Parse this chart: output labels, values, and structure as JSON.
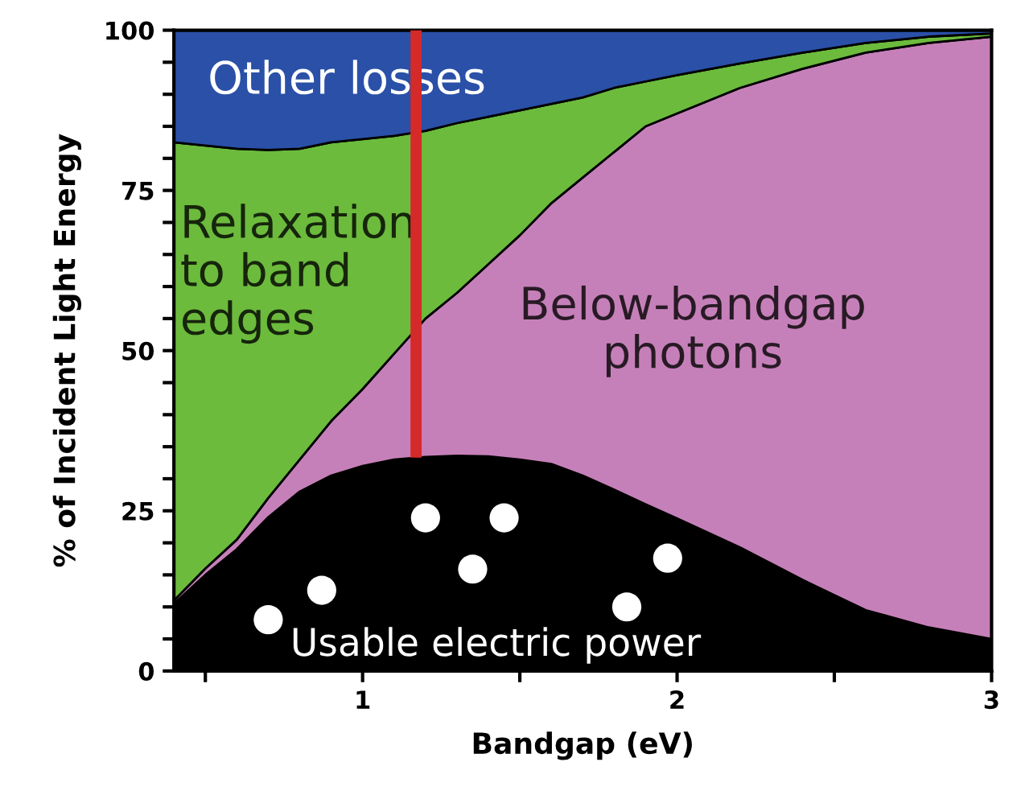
{
  "chart_data": {
    "type": "area",
    "stacked": true,
    "xlabel": "Bandgap (eV)",
    "ylabel": "% of Incident Light Energy",
    "x": [
      0.4,
      0.5,
      0.6,
      0.7,
      0.8,
      0.9,
      1.0,
      1.1,
      1.2,
      1.3,
      1.4,
      1.5,
      1.6,
      1.7,
      1.8,
      1.9,
      2.0,
      2.2,
      2.4,
      2.6,
      2.8,
      3.0
    ],
    "series": [
      {
        "color": "#000000",
        "values": [
          10.5,
          15,
          19,
          24,
          28,
          30.5,
          32,
          33,
          33.4,
          33.6,
          33.5,
          33,
          32.3,
          30.5,
          28.3,
          26,
          23.8,
          19.3,
          14.2,
          9.5,
          6.8,
          5
        ]
      },
      {
        "color": "#c680b9",
        "values": [
          0.5,
          1,
          1.5,
          3,
          5,
          8.5,
          12,
          16.5,
          21.6,
          25.4,
          30,
          35,
          40.7,
          46.5,
          52.7,
          59,
          63.2,
          71.7,
          79.8,
          87,
          91.2,
          94
        ]
      },
      {
        "color": "#6cbb3c",
        "values": [
          71.5,
          66,
          61,
          54.3,
          48.5,
          43.5,
          39,
          34,
          29.3,
          26.5,
          23,
          19.5,
          15.5,
          12.5,
          10,
          7,
          6,
          3.8,
          2.5,
          1.5,
          1,
          0.5
        ]
      },
      {
        "color": "#2a50a8",
        "values": [
          17.5,
          18,
          18.5,
          18.7,
          18.5,
          17.5,
          17,
          16.5,
          15.7,
          14.5,
          13.5,
          12.5,
          11.5,
          10.5,
          9,
          8,
          7,
          5.2,
          3.5,
          2,
          1,
          0.5
        ]
      },
      {
        "type": "scatter",
        "marker": "circle",
        "color": "#ffffff",
        "x": [
          0.7,
          0.87,
          1.2,
          1.35,
          1.45,
          1.84,
          1.97
        ],
        "values": [
          8,
          12.6,
          23.9,
          15.9,
          23.9,
          10,
          17.6
        ]
      },
      {
        "type": "line",
        "color": "#d42a2a",
        "x": [
          1.17,
          1.17
        ],
        "values": [
          33.3,
          100
        ]
      }
    ],
    "xlim": [
      0.4,
      3
    ],
    "ylim": [
      0,
      100
    ],
    "xticks": [
      {
        "value": 0.5,
        "label": null
      },
      1,
      {
        "value": 1.5,
        "label": null
      },
      2,
      {
        "value": 2.5,
        "label": null
      },
      3
    ],
    "yticks": [
      0,
      {
        "value": 5,
        "label": null
      },
      {
        "value": 10,
        "label": null
      },
      {
        "value": 15,
        "label": null
      },
      {
        "value": 20,
        "label": null
      },
      25,
      {
        "value": 30,
        "label": null
      },
      {
        "value": 35,
        "label": null
      },
      {
        "value": 40,
        "label": null
      },
      {
        "value": 45,
        "label": null
      },
      50,
      {
        "value": 55,
        "label": null
      },
      {
        "value": 60,
        "label": null
      },
      {
        "value": 65,
        "label": null
      },
      {
        "value": 70,
        "label": null
      },
      75,
      {
        "value": 80,
        "label": null
      },
      {
        "value": 85,
        "label": null
      },
      {
        "value": 90,
        "label": null
      },
      {
        "value": 95,
        "label": null
      },
      100
    ],
    "annotations": [
      "Other losses",
      "Relaxation\nto band\nedges",
      "Below-bandgap\nphotons",
      "Usable electric power"
    ]
  }
}
